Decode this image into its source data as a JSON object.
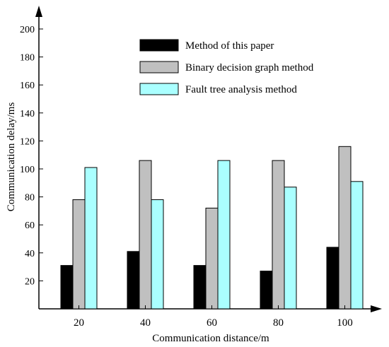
{
  "chart_data": {
    "type": "bar",
    "title": "",
    "xlabel": "Communication distance/m",
    "ylabel": "Communication delay/ms",
    "categories": [
      "20",
      "40",
      "60",
      "80",
      "100"
    ],
    "ylim": [
      0,
      200
    ],
    "yticks": [
      "20",
      "40",
      "60",
      "80",
      "100",
      "120",
      "140",
      "160",
      "180",
      "200"
    ],
    "legend_position": "top-center",
    "grid": false,
    "series": [
      {
        "name": "Method of this paper",
        "color": "#000000",
        "values": [
          31,
          41,
          31,
          27,
          44
        ]
      },
      {
        "name": "Binary decision graph method",
        "color": "#c0c0c0",
        "values": [
          78,
          106,
          72,
          106,
          116
        ]
      },
      {
        "name": "Fault tree analysis method",
        "color": "#aaffff",
        "values": [
          101,
          78,
          106,
          87,
          91
        ]
      }
    ]
  }
}
